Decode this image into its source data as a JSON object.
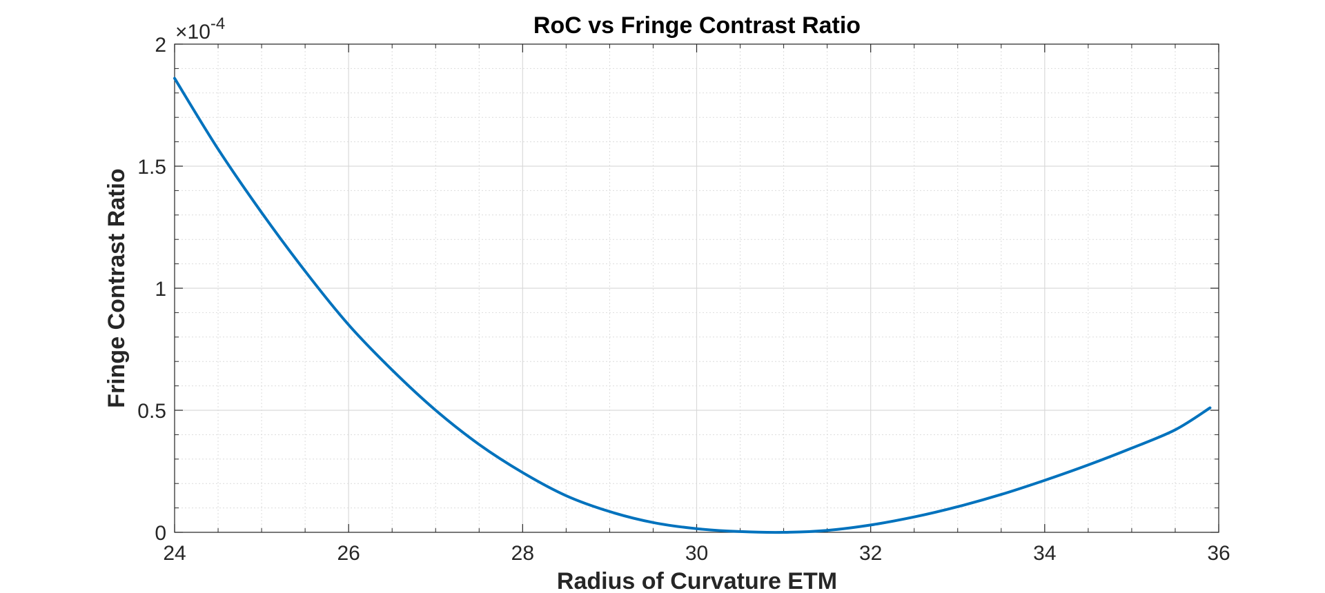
{
  "chart_data": {
    "type": "line",
    "title": "RoC vs Fringe Contrast Ratio",
    "xlabel": "Radius of Curvature ETM",
    "ylabel": "Fringe Contrast Ratio",
    "y_exponent_label": "×10",
    "y_exponent": "-4",
    "xlim": [
      24,
      36
    ],
    "ylim": [
      0,
      0.0002
    ],
    "xticks": [
      24,
      26,
      28,
      30,
      32,
      34,
      36
    ],
    "xtick_labels": [
      "24",
      "26",
      "28",
      "30",
      "32",
      "34",
      "36"
    ],
    "yticks": [
      0,
      5e-05,
      0.0001,
      0.00015,
      0.0002
    ],
    "ytick_labels": [
      "0",
      "0.5",
      "1",
      "1.5",
      "2"
    ],
    "grid": true,
    "minor_grid": true,
    "line_color": "#0072BD",
    "series": [
      {
        "x": [
          24,
          24.5,
          25,
          25.5,
          26,
          26.5,
          27,
          27.5,
          28,
          28.5,
          29,
          29.5,
          30,
          30.5,
          31,
          31.5,
          32,
          32.5,
          33,
          33.5,
          34,
          34.5,
          35,
          35.5,
          35.9
        ],
        "y": [
          0.000186,
          0.000157,
          0.000131,
          0.000107,
          8.5e-05,
          6.65e-05,
          5e-05,
          3.6e-05,
          2.45e-05,
          1.5e-05,
          8.5e-06,
          4e-06,
          1.5e-06,
          3e-07,
          0,
          8e-07,
          3e-06,
          6.3e-06,
          1.05e-05,
          1.55e-05,
          2.13e-05,
          2.76e-05,
          3.45e-05,
          4.2e-05,
          5.1e-05
        ]
      }
    ]
  }
}
